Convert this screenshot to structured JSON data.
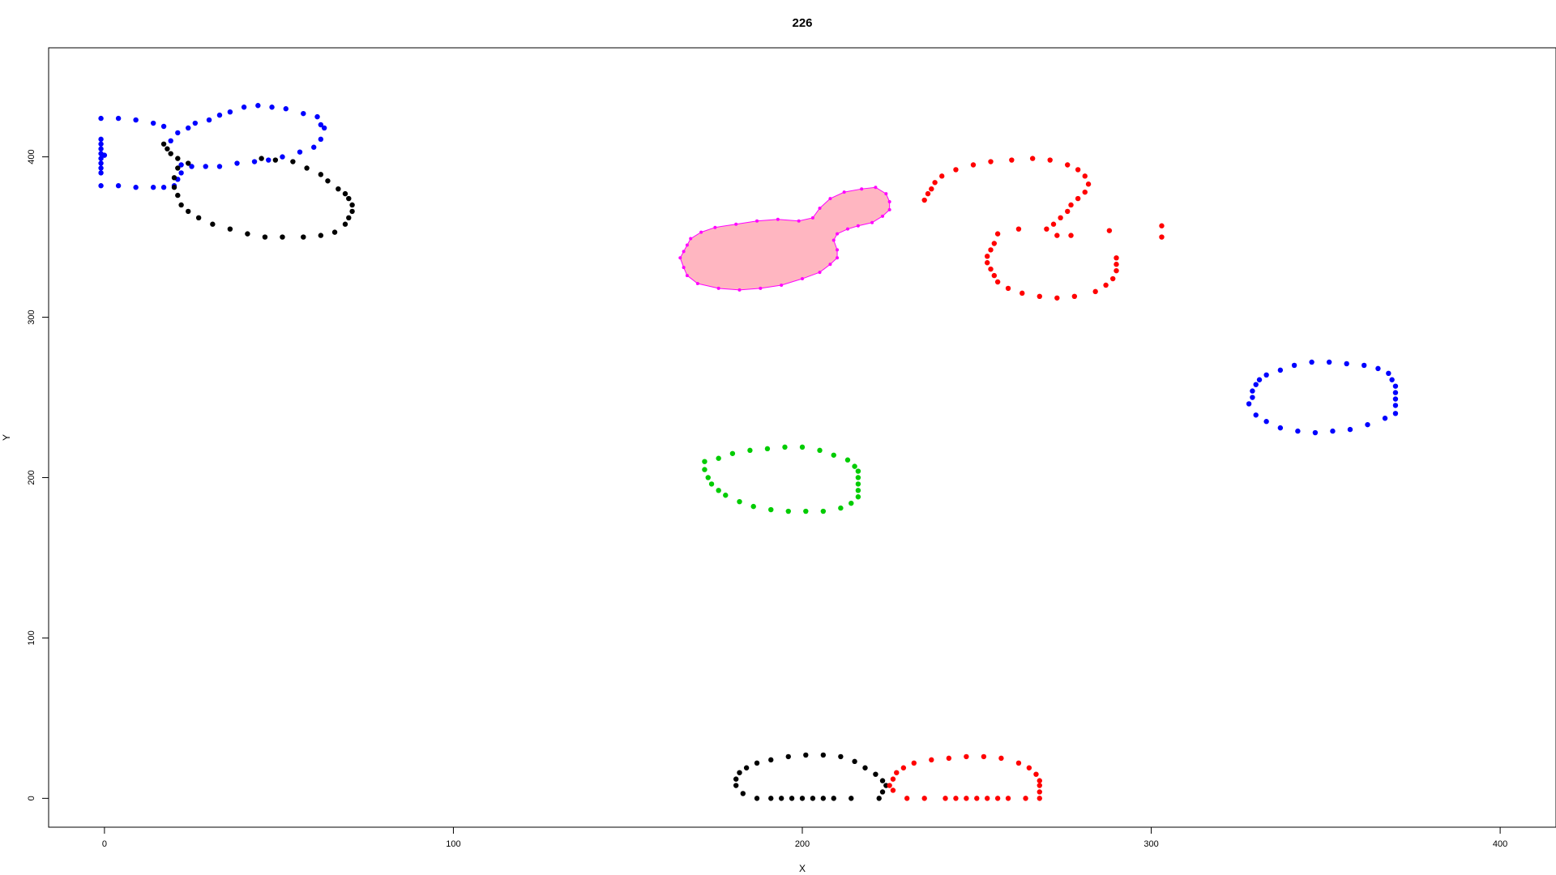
{
  "chart_data": {
    "type": "scatter",
    "title": "226",
    "xlabel": "X",
    "ylabel": "Y",
    "xlim": [
      -16,
      416
    ],
    "ylim": [
      -18,
      468
    ],
    "x_ticks": [
      0,
      100,
      200,
      300,
      400
    ],
    "y_ticks": [
      0,
      100,
      200,
      300,
      400
    ],
    "grid": false,
    "legend": "none",
    "series": [
      {
        "color": "#0000ff",
        "kind": "points",
        "points": [
          [
            -1,
            424
          ],
          [
            4,
            424
          ],
          [
            9,
            423
          ],
          [
            14,
            421
          ],
          [
            17,
            419
          ],
          [
            -1,
            411
          ],
          [
            -1,
            408
          ],
          [
            -1,
            405
          ],
          [
            -1,
            402
          ],
          [
            0,
            401
          ],
          [
            -1,
            399
          ],
          [
            -1,
            396
          ],
          [
            -1,
            393
          ],
          [
            -1,
            390
          ],
          [
            -1,
            382
          ],
          [
            4,
            382
          ],
          [
            9,
            381
          ],
          [
            14,
            381
          ],
          [
            17,
            381
          ],
          [
            20,
            382
          ],
          [
            21,
            386
          ],
          [
            22,
            390
          ],
          [
            22,
            395
          ],
          [
            19,
            410
          ],
          [
            21,
            415
          ],
          [
            24,
            418
          ],
          [
            26,
            421
          ],
          [
            30,
            423
          ],
          [
            33,
            426
          ],
          [
            36,
            428
          ],
          [
            40,
            431
          ],
          [
            44,
            432
          ],
          [
            48,
            431
          ],
          [
            52,
            430
          ],
          [
            57,
            427
          ],
          [
            61,
            425
          ],
          [
            62,
            420
          ],
          [
            63,
            418
          ],
          [
            62,
            411
          ],
          [
            60,
            406
          ],
          [
            56,
            403
          ],
          [
            51,
            400
          ],
          [
            47,
            398
          ],
          [
            43,
            397
          ],
          [
            38,
            396
          ],
          [
            33,
            394
          ],
          [
            29,
            394
          ],
          [
            25,
            394
          ]
        ]
      },
      {
        "color": "#000000",
        "kind": "points",
        "points": [
          [
            17,
            408
          ],
          [
            18,
            405
          ],
          [
            19,
            402
          ],
          [
            21,
            399
          ],
          [
            24,
            396
          ],
          [
            21,
            393
          ],
          [
            20,
            387
          ],
          [
            20,
            381
          ],
          [
            21,
            376
          ],
          [
            22,
            370
          ],
          [
            24,
            366
          ],
          [
            27,
            362
          ],
          [
            31,
            358
          ],
          [
            36,
            355
          ],
          [
            41,
            352
          ],
          [
            46,
            350
          ],
          [
            51,
            350
          ],
          [
            57,
            350
          ],
          [
            62,
            351
          ],
          [
            66,
            353
          ],
          [
            69,
            358
          ],
          [
            70,
            362
          ],
          [
            71,
            366
          ],
          [
            71,
            370
          ],
          [
            70,
            374
          ],
          [
            69,
            377
          ],
          [
            67,
            380
          ],
          [
            64,
            385
          ],
          [
            62,
            389
          ],
          [
            58,
            393
          ],
          [
            54,
            397
          ],
          [
            49,
            398
          ],
          [
            45,
            399
          ]
        ]
      },
      {
        "color": "#ff0000",
        "kind": "points",
        "points": [
          [
            235,
            373
          ],
          [
            236,
            377
          ],
          [
            237,
            380
          ],
          [
            238,
            384
          ],
          [
            240,
            388
          ],
          [
            244,
            392
          ],
          [
            249,
            395
          ],
          [
            254,
            397
          ],
          [
            260,
            398
          ],
          [
            266,
            399
          ],
          [
            271,
            398
          ],
          [
            276,
            395
          ],
          [
            279,
            392
          ],
          [
            281,
            388
          ],
          [
            282,
            383
          ],
          [
            281,
            378
          ],
          [
            279,
            374
          ],
          [
            277,
            370
          ],
          [
            276,
            366
          ],
          [
            274,
            362
          ],
          [
            272,
            358
          ],
          [
            270,
            355
          ],
          [
            273,
            351
          ],
          [
            277,
            351
          ],
          [
            262,
            355
          ],
          [
            256,
            352
          ],
          [
            255,
            346
          ],
          [
            254,
            342
          ],
          [
            253,
            338
          ],
          [
            253,
            334
          ],
          [
            254,
            330
          ],
          [
            255,
            326
          ],
          [
            256,
            322
          ],
          [
            259,
            318
          ],
          [
            263,
            315
          ],
          [
            268,
            313
          ],
          [
            273,
            312
          ],
          [
            278,
            313
          ],
          [
            284,
            316
          ],
          [
            287,
            320
          ],
          [
            289,
            324
          ],
          [
            290,
            329
          ],
          [
            290,
            333
          ],
          [
            290,
            337
          ],
          [
            288,
            354
          ],
          [
            303,
            357
          ],
          [
            303,
            350
          ]
        ]
      },
      {
        "color": "#00cc00",
        "kind": "points",
        "points": [
          [
            172,
            210
          ],
          [
            172,
            205
          ],
          [
            173,
            200
          ],
          [
            174,
            196
          ],
          [
            176,
            192
          ],
          [
            178,
            189
          ],
          [
            182,
            185
          ],
          [
            186,
            182
          ],
          [
            191,
            180
          ],
          [
            196,
            179
          ],
          [
            201,
            179
          ],
          [
            206,
            179
          ],
          [
            211,
            181
          ],
          [
            214,
            184
          ],
          [
            216,
            188
          ],
          [
            216,
            192
          ],
          [
            216,
            196
          ],
          [
            216,
            200
          ],
          [
            216,
            204
          ],
          [
            215,
            207
          ],
          [
            213,
            211
          ],
          [
            209,
            214
          ],
          [
            205,
            217
          ],
          [
            200,
            219
          ],
          [
            195,
            219
          ],
          [
            190,
            218
          ],
          [
            185,
            217
          ],
          [
            180,
            215
          ],
          [
            176,
            212
          ]
        ]
      },
      {
        "color": "#0000ff",
        "kind": "points",
        "points": [
          [
            328,
            246
          ],
          [
            329,
            250
          ],
          [
            329,
            254
          ],
          [
            330,
            258
          ],
          [
            331,
            261
          ],
          [
            333,
            264
          ],
          [
            337,
            267
          ],
          [
            341,
            270
          ],
          [
            346,
            272
          ],
          [
            351,
            272
          ],
          [
            356,
            271
          ],
          [
            361,
            270
          ],
          [
            365,
            268
          ],
          [
            368,
            265
          ],
          [
            369,
            261
          ],
          [
            370,
            257
          ],
          [
            370,
            253
          ],
          [
            370,
            249
          ],
          [
            370,
            245
          ],
          [
            370,
            240
          ],
          [
            367,
            237
          ],
          [
            362,
            233
          ],
          [
            357,
            230
          ],
          [
            352,
            229
          ],
          [
            347,
            228
          ],
          [
            342,
            229
          ],
          [
            337,
            231
          ],
          [
            333,
            235
          ],
          [
            330,
            239
          ]
        ]
      },
      {
        "color": "#000000",
        "kind": "points",
        "points": [
          [
            181,
            8
          ],
          [
            181,
            12
          ],
          [
            182,
            16
          ],
          [
            184,
            19
          ],
          [
            187,
            22
          ],
          [
            191,
            24
          ],
          [
            196,
            26
          ],
          [
            201,
            27
          ],
          [
            206,
            27
          ],
          [
            211,
            26
          ],
          [
            215,
            23
          ],
          [
            218,
            19
          ],
          [
            221,
            15
          ],
          [
            223,
            11
          ],
          [
            224,
            8
          ],
          [
            223,
            4
          ],
          [
            222,
            0
          ],
          [
            214,
            0
          ],
          [
            209,
            0
          ],
          [
            206,
            0
          ],
          [
            203,
            0
          ],
          [
            200,
            0
          ],
          [
            197,
            0
          ],
          [
            194,
            0
          ],
          [
            191,
            0
          ],
          [
            187,
            0
          ],
          [
            183,
            3
          ]
        ]
      },
      {
        "color": "#ff0000",
        "kind": "points",
        "points": [
          [
            225,
            8
          ],
          [
            226,
            12
          ],
          [
            227,
            16
          ],
          [
            229,
            19
          ],
          [
            232,
            22
          ],
          [
            237,
            24
          ],
          [
            242,
            25
          ],
          [
            247,
            26
          ],
          [
            252,
            26
          ],
          [
            257,
            25
          ],
          [
            262,
            22
          ],
          [
            265,
            19
          ],
          [
            267,
            15
          ],
          [
            268,
            11
          ],
          [
            268,
            8
          ],
          [
            268,
            4
          ],
          [
            268,
            0
          ],
          [
            264,
            0
          ],
          [
            259,
            0
          ],
          [
            256,
            0
          ],
          [
            253,
            0
          ],
          [
            250,
            0
          ],
          [
            247,
            0
          ],
          [
            244,
            0
          ],
          [
            241,
            0
          ],
          [
            235,
            0
          ],
          [
            230,
            0
          ],
          [
            226,
            5
          ]
        ]
      },
      {
        "color": "#ff00ff",
        "kind": "polygon",
        "fill": "#ffb6c1",
        "points": [
          [
            165,
            337
          ],
          [
            166,
            341
          ],
          [
            167,
            345
          ],
          [
            168,
            349
          ],
          [
            171,
            353
          ],
          [
            175,
            356
          ],
          [
            181,
            358
          ],
          [
            187,
            360
          ],
          [
            193,
            361
          ],
          [
            199,
            360
          ],
          [
            203,
            362
          ],
          [
            205,
            368
          ],
          [
            208,
            374
          ],
          [
            212,
            378
          ],
          [
            217,
            380
          ],
          [
            221,
            381
          ],
          [
            224,
            377
          ],
          [
            225,
            372
          ],
          [
            225,
            367
          ],
          [
            223,
            363
          ],
          [
            220,
            359
          ],
          [
            216,
            357
          ],
          [
            213,
            355
          ],
          [
            210,
            352
          ],
          [
            209,
            348
          ],
          [
            210,
            342
          ],
          [
            210,
            337
          ],
          [
            208,
            333
          ],
          [
            205,
            328
          ],
          [
            200,
            324
          ],
          [
            194,
            320
          ],
          [
            188,
            318
          ],
          [
            182,
            317
          ],
          [
            176,
            318
          ],
          [
            170,
            321
          ],
          [
            167,
            326
          ],
          [
            166,
            331
          ]
        ]
      }
    ]
  }
}
